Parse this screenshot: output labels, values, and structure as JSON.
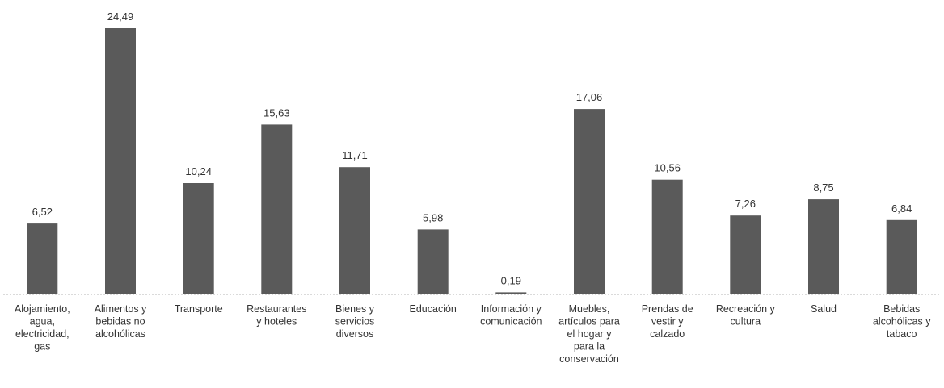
{
  "chart_data": {
    "type": "bar",
    "title": "",
    "xlabel": "",
    "ylabel": "",
    "ylim": [
      0,
      25
    ],
    "grid": false,
    "legend": "none",
    "bar_color": "#5a5a5a",
    "categories": [
      "Alojamiento, agua, electricidad, gas",
      "Alimentos y bebidas no alcohólicas",
      "Transporte",
      "Restaurantes y hoteles",
      "Bienes y servicios diversos",
      "Educación",
      "Información y comunicación",
      "Muebles, artículos para el hogar y para la conservación",
      "Prendas de vestir y calzado",
      "Recreación y cultura",
      "Salud",
      "Bebidas alcohólicas y tabaco"
    ],
    "category_lines": [
      [
        "Alojamiento,",
        "agua,",
        "electricidad,",
        "gas"
      ],
      [
        "Alimentos y",
        "bebidas no",
        "alcohólicas"
      ],
      [
        "Transporte"
      ],
      [
        "Restaurantes",
        "y hoteles"
      ],
      [
        "Bienes y",
        "servicios",
        "diversos"
      ],
      [
        "Educación"
      ],
      [
        "Información y",
        "comunicación"
      ],
      [
        "Muebles,",
        "artículos para",
        "el hogar y",
        "para la",
        "conservación"
      ],
      [
        "Prendas de",
        "vestir y",
        "calzado"
      ],
      [
        "Recreación y",
        "cultura"
      ],
      [
        "Salud"
      ],
      [
        "Bebidas",
        "alcohólicas y",
        "tabaco"
      ]
    ],
    "values": [
      6.52,
      24.49,
      10.24,
      15.63,
      11.71,
      5.98,
      0.19,
      17.06,
      10.56,
      7.26,
      8.75,
      6.84
    ],
    "value_labels": [
      "6,52",
      "24,49",
      "10,24",
      "15,63",
      "11,71",
      "5,98",
      "0,19",
      "17,06",
      "10,56",
      "7,26",
      "8,75",
      "6,84"
    ]
  }
}
